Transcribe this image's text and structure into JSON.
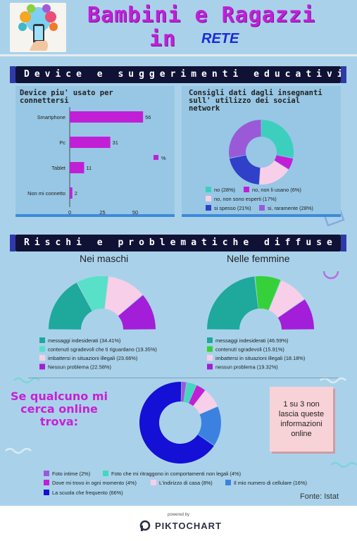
{
  "header": {
    "title_line1": "Bambini e Ragazzi",
    "title_in": "in",
    "title_rete": "RETE",
    "logo_icon": "network-phone-logo-icon"
  },
  "section1": {
    "band_label": "Device e suggerimenti educativi"
  },
  "section2": {
    "band_label": "Rischi e problematiche diffuse"
  },
  "devices_chart": {
    "type": "bar",
    "orientation": "horizontal",
    "title": "Device piu' usato per connettersi",
    "categories": [
      "Smartphone",
      "Pc",
      "Tablet",
      "Non mi connetto"
    ],
    "values": [
      56,
      31,
      11,
      2
    ],
    "value_labels": [
      "56",
      "31",
      "11",
      "2"
    ],
    "xlim": [
      0,
      60
    ],
    "ticks": [
      0,
      25,
      50
    ],
    "tick_labels": [
      "0",
      "25",
      "50"
    ],
    "legend_label": "%",
    "color": "#c11fd6",
    "grid": false
  },
  "teachers_chart": {
    "type": "pie",
    "style": "donut",
    "title": "Consigli dati dagli insegnanti sull' utilizzo dei social network",
    "labels": [
      "no (28%)",
      "no, non li usano (6%)",
      "no, non sono esperti (17%)",
      "si spesso (21%)",
      "si, raramente (28%)"
    ],
    "values": [
      28,
      6,
      17,
      21,
      28
    ],
    "colors": [
      "#3dcfbe",
      "#c11fd6",
      "#f8cfe8",
      "#3040c8",
      "#9a5ad8"
    ]
  },
  "boys_chart": {
    "type": "pie",
    "style": "half-donut",
    "title": "Nei maschi",
    "labels": [
      "messaggi indesiderati (34.41%)",
      "contenuti sgradevoli che ti riguardano (19.35%)",
      "imbattersi in situazioni illegali (23.66%)",
      "Nessun problema (22.58%)"
    ],
    "values": [
      34.41,
      19.35,
      23.66,
      22.58
    ],
    "colors": [
      "#1fa89c",
      "#58e0c9",
      "#f8cfe8",
      "#a31ed8"
    ]
  },
  "girls_chart": {
    "type": "pie",
    "style": "half-donut",
    "title": "Nelle femmine",
    "labels": [
      "messaggi indesiderati (46.59%)",
      "contenuti sgradevoli (15.91%)",
      "imbattersi in situazioni illegali (18.18%)",
      "nessun problema (19.32%)"
    ],
    "values": [
      46.59,
      15.91,
      18.18,
      19.32
    ],
    "colors": [
      "#1fa89c",
      "#36d13a",
      "#f8cfe8",
      "#a31ed8"
    ]
  },
  "search_chart": {
    "type": "pie",
    "style": "donut",
    "title": "Se qualcuno mi cerca online trova:",
    "labels": [
      "Foto intime (2%)",
      "Foto che mi ritraggono in comportamenti non legali (4%)",
      "Dove mi trovo in ogni momento (4%)",
      "L'indirizzo di casa (8%)",
      "Il mio numero di cellulare (16%)",
      "La scuola che frequento (66%)"
    ],
    "values": [
      2,
      4,
      4,
      8,
      16,
      66
    ],
    "colors": [
      "#9a5ad8",
      "#45d6c0",
      "#c11fd6",
      "#f8cfe8",
      "#3b82e0",
      "#1410d6"
    ]
  },
  "callout": {
    "text": "1 su 3 non lascia queste informazioni online"
  },
  "footer": {
    "source": "Fonte: Istat",
    "powered_by": "powered by",
    "brand": "PIKTOCHART",
    "brand_icon": "piktochart-logo-icon"
  }
}
